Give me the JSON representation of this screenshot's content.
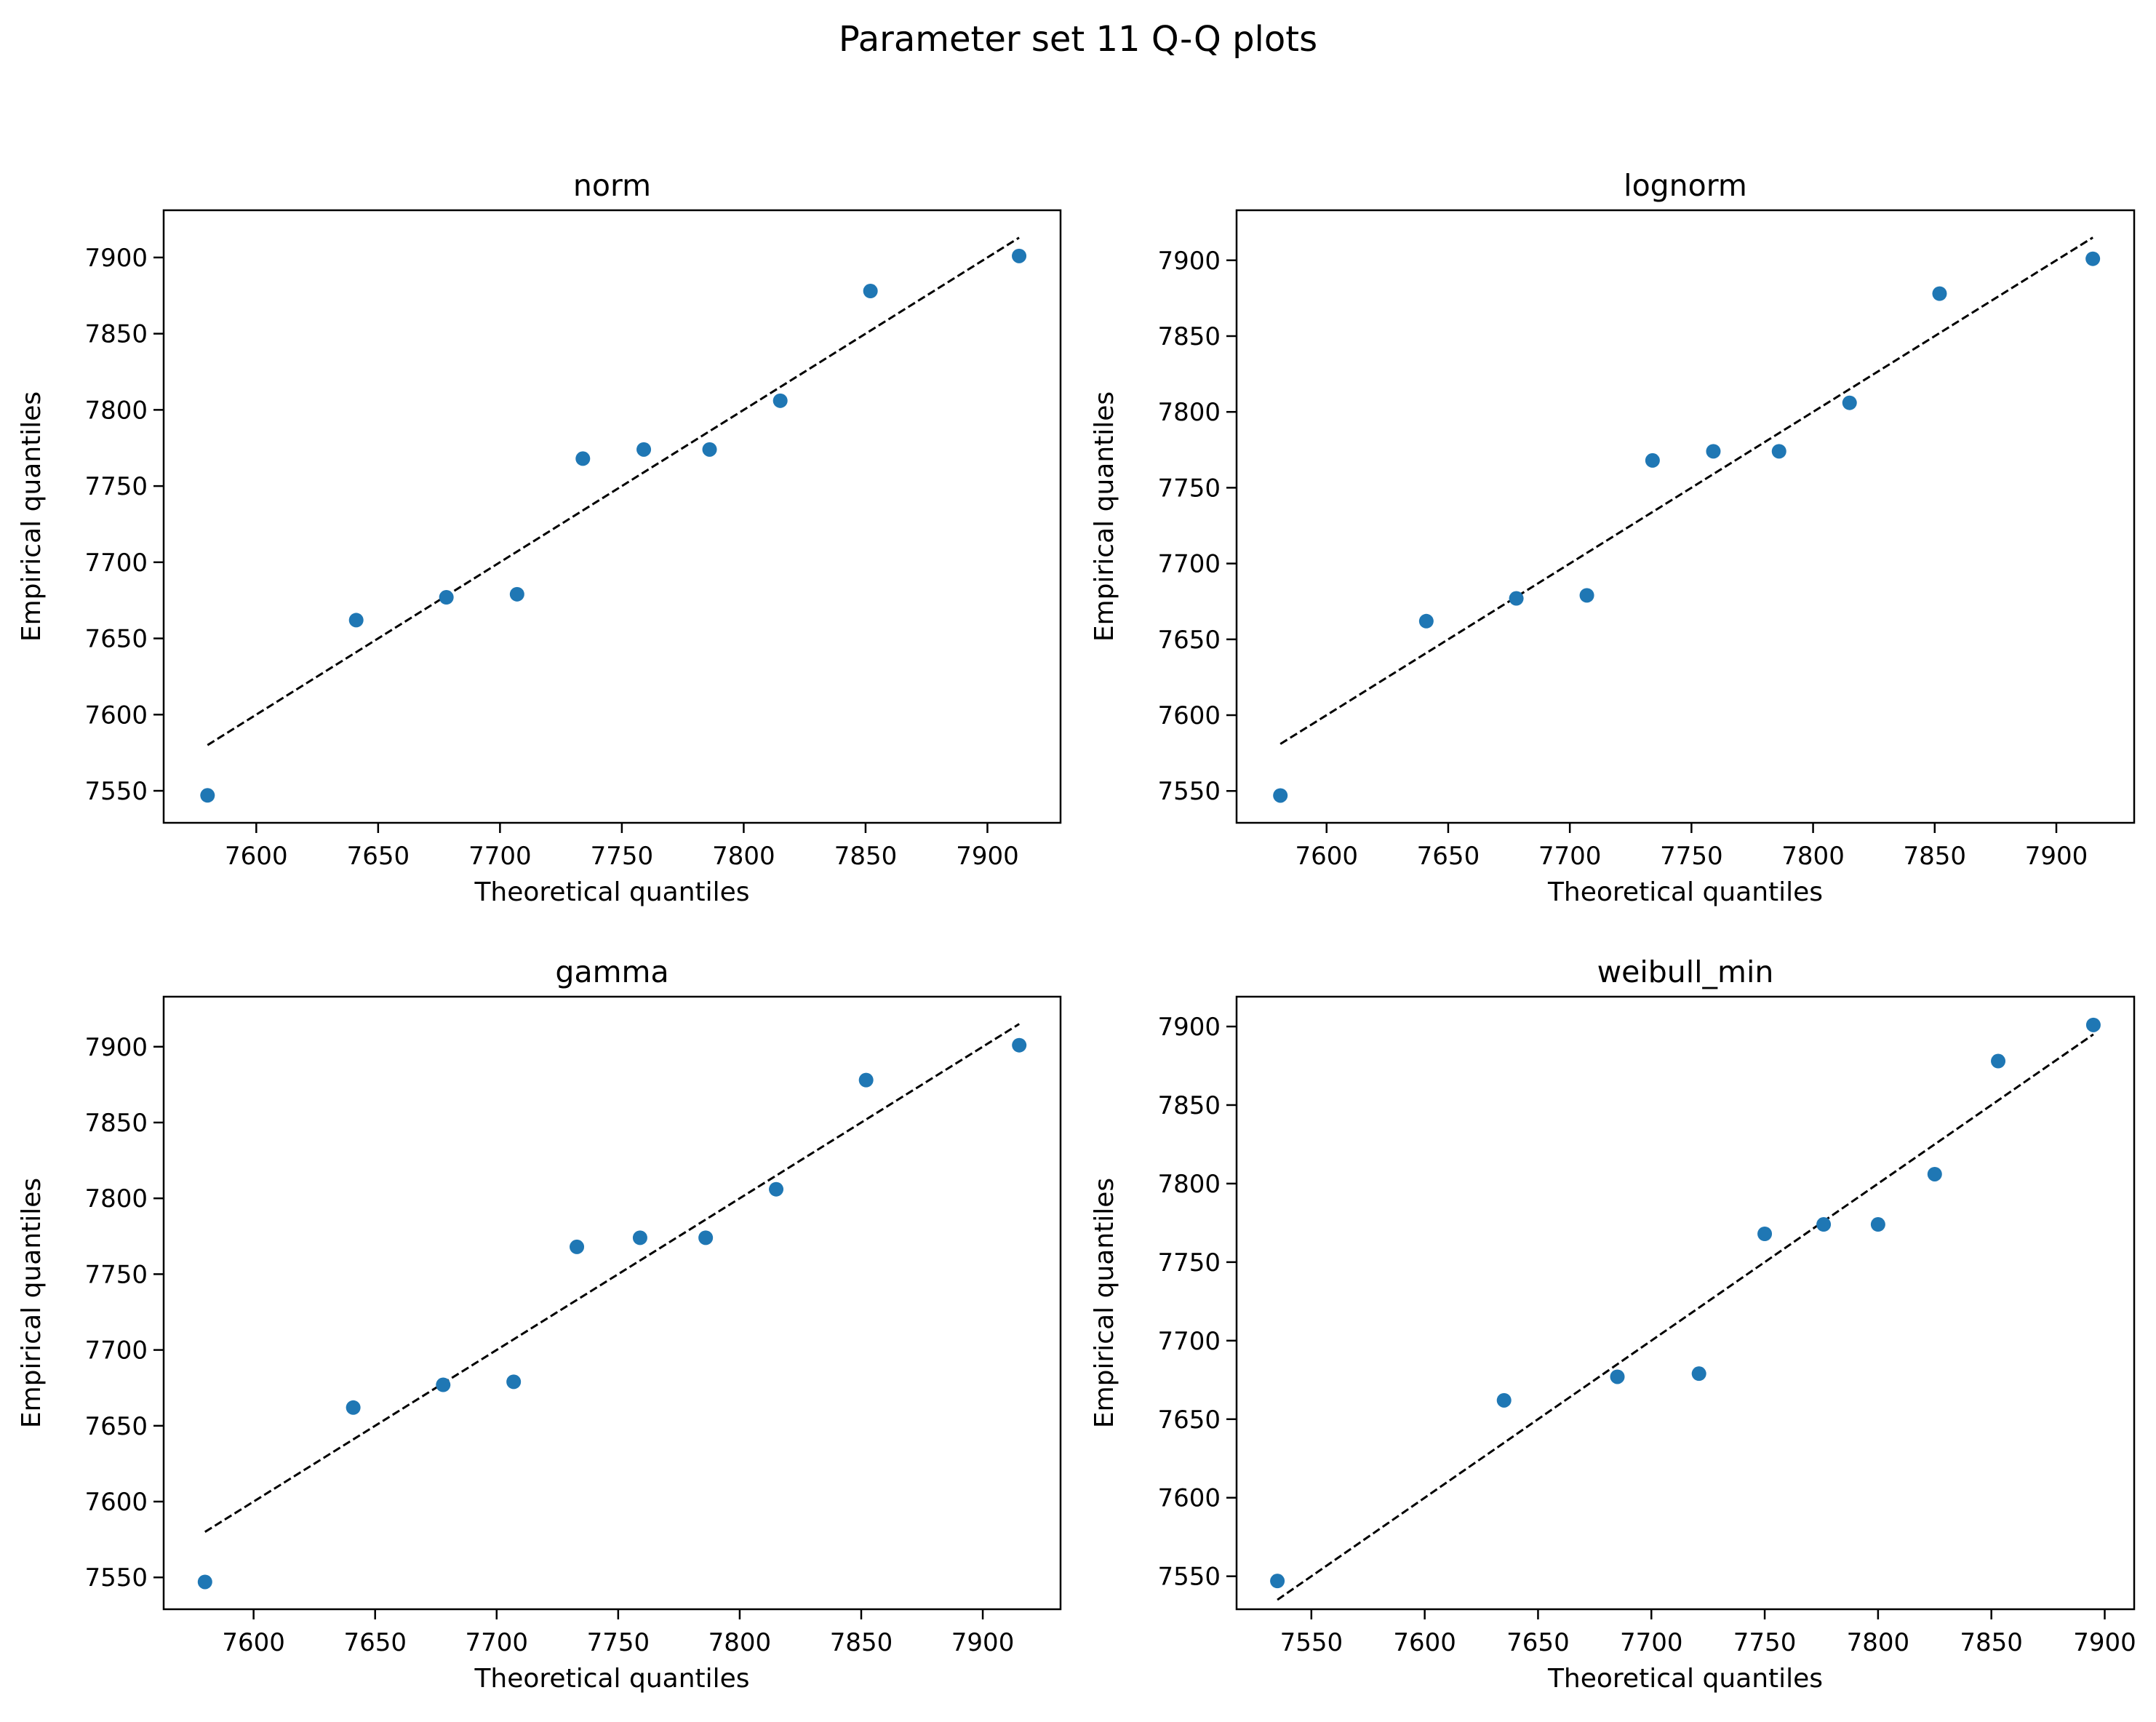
{
  "figure": {
    "title": "Parameter set 11 Q-Q plots"
  },
  "style": {
    "point_color": "#1f77b4",
    "line_color": "#000000",
    "axes_color": "#000000"
  },
  "chart_data": [
    {
      "type": "scatter",
      "title": "norm",
      "xlabel": "Theoretical quantiles",
      "ylabel": "Empirical quantiles",
      "xlim": [
        7562,
        7930
      ],
      "ylim": [
        7529,
        7931
      ],
      "xticks": [
        7600,
        7650,
        7700,
        7750,
        7800,
        7850,
        7900
      ],
      "yticks": [
        7550,
        7600,
        7650,
        7700,
        7750,
        7800,
        7850,
        7900
      ],
      "grid": false,
      "points": {
        "x": [
          7580,
          7641,
          7678,
          7707,
          7734,
          7759,
          7786,
          7815,
          7852,
          7913
        ],
        "y": [
          7547,
          7662,
          7677,
          7679,
          7768,
          7774,
          7774,
          7806,
          7878,
          7901
        ]
      },
      "reference_line": {
        "x": [
          7580,
          7913
        ],
        "y": [
          7580,
          7913
        ],
        "style": "dashed"
      }
    },
    {
      "type": "scatter",
      "title": "lognorm",
      "xlabel": "Theoretical quantiles",
      "ylabel": "Empirical quantiles",
      "xlim": [
        7563,
        7932
      ],
      "ylim": [
        7529,
        7933
      ],
      "xticks": [
        7600,
        7650,
        7700,
        7750,
        7800,
        7850,
        7900
      ],
      "yticks": [
        7550,
        7600,
        7650,
        7700,
        7750,
        7800,
        7850,
        7900
      ],
      "grid": false,
      "points": {
        "x": [
          7581,
          7641,
          7678,
          7707,
          7734,
          7759,
          7786,
          7815,
          7852,
          7915
        ],
        "y": [
          7547,
          7662,
          7677,
          7679,
          7768,
          7774,
          7774,
          7806,
          7878,
          7901
        ]
      },
      "reference_line": {
        "x": [
          7581,
          7915
        ],
        "y": [
          7581,
          7915
        ],
        "style": "dashed"
      }
    },
    {
      "type": "scatter",
      "title": "gamma",
      "xlabel": "Theoretical quantiles",
      "ylabel": "Empirical quantiles",
      "xlim": [
        7563,
        7932
      ],
      "ylim": [
        7529,
        7933
      ],
      "xticks": [
        7600,
        7650,
        7700,
        7750,
        7800,
        7850,
        7900
      ],
      "yticks": [
        7550,
        7600,
        7650,
        7700,
        7750,
        7800,
        7850,
        7900
      ],
      "grid": false,
      "points": {
        "x": [
          7580,
          7641,
          7678,
          7707,
          7733,
          7759,
          7786,
          7815,
          7852,
          7915
        ],
        "y": [
          7547,
          7662,
          7677,
          7679,
          7768,
          7774,
          7774,
          7806,
          7878,
          7901
        ]
      },
      "reference_line": {
        "x": [
          7580,
          7915
        ],
        "y": [
          7580,
          7915
        ],
        "style": "dashed"
      }
    },
    {
      "type": "scatter",
      "title": "weibull_min",
      "xlabel": "Theoretical quantiles",
      "ylabel": "Empirical quantiles",
      "xlim": [
        7517,
        7913
      ],
      "ylim": [
        7529,
        7919
      ],
      "xticks": [
        7550,
        7600,
        7650,
        7700,
        7750,
        7800,
        7850,
        7900
      ],
      "yticks": [
        7550,
        7600,
        7650,
        7700,
        7750,
        7800,
        7850,
        7900
      ],
      "grid": false,
      "points": {
        "x": [
          7535,
          7635,
          7685,
          7721,
          7750,
          7776,
          7800,
          7825,
          7853,
          7895
        ],
        "y": [
          7547,
          7662,
          7677,
          7679,
          7768,
          7774,
          7774,
          7806,
          7878,
          7901
        ]
      },
      "reference_line": {
        "x": [
          7535,
          7895
        ],
        "y": [
          7535,
          7895
        ],
        "style": "dashed"
      }
    }
  ]
}
